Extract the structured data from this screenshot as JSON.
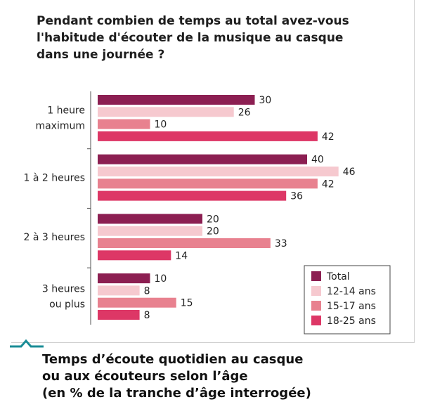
{
  "title": "Pendant combien de temps au total avez-vous l'habitude d'écouter de la musique au casque dans une journée ?",
  "caption": {
    "line1": "Temps d’écoute quotidien au casque",
    "line2": "ou aux écouteurs selon l’âge",
    "line3": "(en % de la tranche d’âge interrogée)"
  },
  "chart_data": {
    "type": "bar",
    "orientation": "horizontal",
    "title": "Pendant combien de temps au total avez-vous l'habitude d'écouter de la musique au casque dans une journée ?",
    "categories": [
      [
        "1 heure",
        "maximum"
      ],
      [
        "1 à 2 heures"
      ],
      [
        "2 à 3 heures"
      ],
      [
        "3 heures",
        "ou plus"
      ]
    ],
    "series": [
      {
        "name": "Total",
        "color": "#8c1f52",
        "values": [
          30,
          40,
          20,
          10
        ]
      },
      {
        "name": "12-14 ans",
        "color": "#f6c9cf",
        "values": [
          26,
          46,
          20,
          8
        ]
      },
      {
        "name": "15-17 ans",
        "color": "#e8818f",
        "values": [
          10,
          42,
          33,
          15
        ]
      },
      {
        "name": "18-25 ans",
        "color": "#dd3766",
        "values": [
          42,
          36,
          14,
          8
        ]
      }
    ],
    "xlim": [
      0,
      50
    ],
    "grid": false,
    "legend_position": "bottom-right",
    "data_labels": true
  }
}
